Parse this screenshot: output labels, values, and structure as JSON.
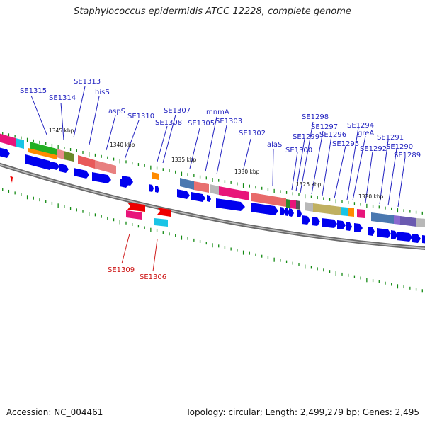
{
  "title": "Staphylococcus epidermidis ATCC 12228, complete genome",
  "footer": {
    "accession": "Accession: NC_004461",
    "topology": "Topology: circular; Length: 2,499,279 bp; Genes: 2,495"
  },
  "kbp_ticks": [
    "1345 kbp",
    "1340 kbp",
    "1335 kbp",
    "1330 kbp",
    "1325 kbp",
    "1320 kbp"
  ],
  "gene_labels_top": [
    "SE1315",
    "SE1314",
    "SE1313",
    "hisS",
    "aspS",
    "SE1310",
    "SE1308",
    "SE1307",
    "SE1305",
    "mnmA",
    "SE1303",
    "SE1302",
    "alaS",
    "SE1300",
    "SE1299",
    "SE1298",
    "SE1297",
    "SE1296",
    "SE1295",
    "SE1294",
    "greA",
    "SE1292",
    "SE1291",
    "SE1290",
    "SE1289"
  ],
  "gene_labels_bottom": [
    "SE1309",
    "SE1306"
  ],
  "colors": {
    "gene_label_forward": "#1f1fbf",
    "gene_label_reverse": "#cc1111",
    "cds_arrow": "#0000ee",
    "backbone": "#808080",
    "tick_green": "#138a13"
  }
}
